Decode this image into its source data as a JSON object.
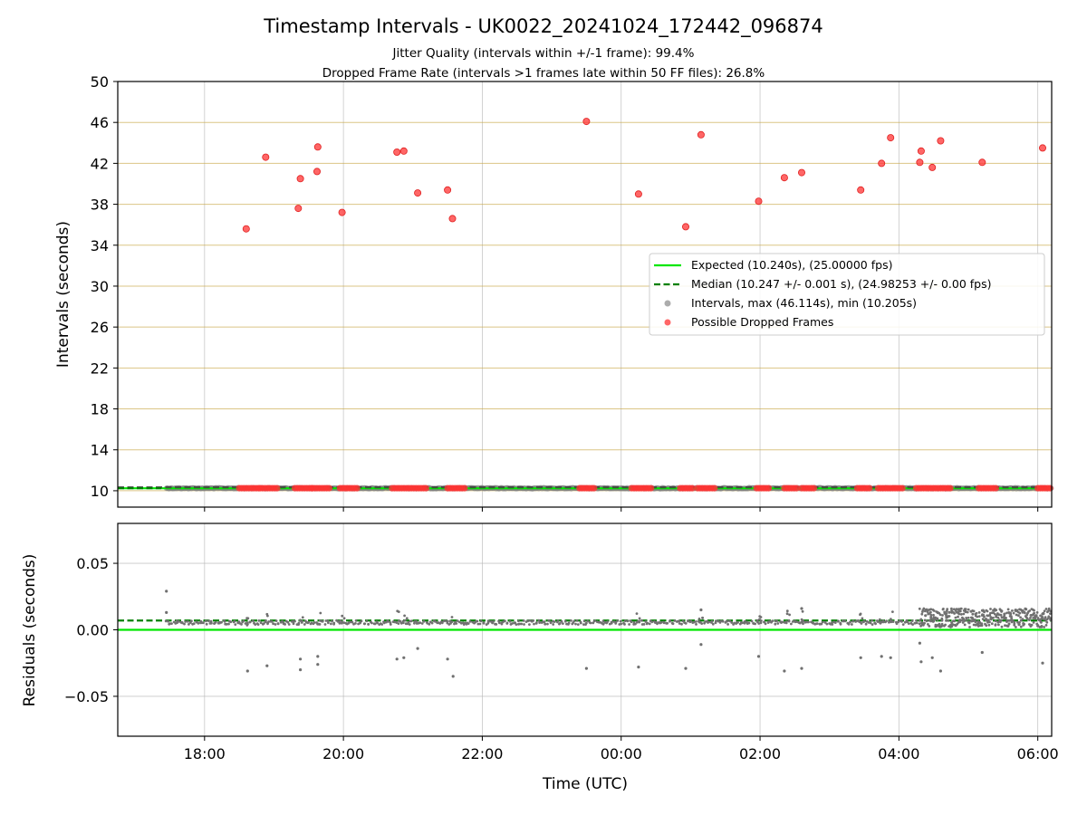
{
  "chart_data": [
    {
      "type": "scatter",
      "title": "Timestamp Intervals - UK0022_20241024_172442_096874",
      "subtitle_lines": [
        "Jitter Quality (intervals within +/-1 frame): 99.4%",
        "Dropped Frame Rate (intervals >1 frames late within 50 FF files): 26.8%"
      ],
      "ylabel": "Intervals (seconds)",
      "ylim": [
        8.4,
        50
      ],
      "yticks": [
        "10",
        "14",
        "18",
        "22",
        "26",
        "30",
        "34",
        "38",
        "42",
        "46",
        "50"
      ],
      "xlim_hours": [
        16.75,
        30.2
      ],
      "grid": true,
      "legend_position": "center-right",
      "series": [
        {
          "name": "Expected (10.240s), (25.00000 fps)",
          "kind": "hline",
          "y": 10.24,
          "color": "#00e600",
          "style": "solid"
        },
        {
          "name": "Median (10.247 +/- 0.001 s), (24.98253 +/- 0.00 fps)",
          "kind": "hline",
          "y": 10.247,
          "color": "#008000",
          "style": "dashed"
        },
        {
          "name": "Intervals, max (46.114s), min (10.205s)",
          "kind": "points",
          "color": "#808080",
          "x_range_hours": [
            17.45,
            30.2
          ],
          "y": 10.247
        },
        {
          "name": "Possible Dropped Frames",
          "kind": "points",
          "color": "#ff3333",
          "points": [
            [
              18.6,
              35.6
            ],
            [
              18.88,
              42.6
            ],
            [
              19.35,
              37.6
            ],
            [
              19.38,
              40.5
            ],
            [
              19.62,
              41.2
            ],
            [
              19.63,
              43.6
            ],
            [
              19.98,
              37.2
            ],
            [
              20.77,
              43.1
            ],
            [
              20.87,
              43.2
            ],
            [
              21.07,
              39.1
            ],
            [
              21.5,
              39.4
            ],
            [
              21.57,
              36.6
            ],
            [
              23.5,
              46.1
            ],
            [
              24.25,
              39.0
            ],
            [
              24.93,
              35.8
            ],
            [
              25.15,
              44.8
            ],
            [
              25.98,
              38.3
            ],
            [
              26.35,
              40.6
            ],
            [
              26.6,
              41.1
            ],
            [
              27.45,
              39.4
            ],
            [
              27.75,
              42.0
            ],
            [
              27.88,
              44.5
            ],
            [
              28.3,
              42.1
            ],
            [
              28.32,
              43.2
            ],
            [
              28.48,
              41.6
            ],
            [
              28.6,
              44.2
            ],
            [
              29.2,
              42.1
            ],
            [
              30.07,
              43.5
            ]
          ],
          "baseline_cluster_hours": [
            [
              18.5,
              18.8
            ],
            [
              18.8,
              19.05
            ],
            [
              19.3,
              19.55
            ],
            [
              19.55,
              19.8
            ],
            [
              19.95,
              20.2
            ],
            [
              20.7,
              21.2
            ],
            [
              21.5,
              21.75
            ],
            [
              23.4,
              23.62
            ],
            [
              24.15,
              24.45
            ],
            [
              24.85,
              25.05
            ],
            [
              25.1,
              25.35
            ],
            [
              25.95,
              26.15
            ],
            [
              26.35,
              26.55
            ],
            [
              26.6,
              26.8
            ],
            [
              27.4,
              27.6
            ],
            [
              27.7,
              28.05
            ],
            [
              28.25,
              28.75
            ],
            [
              29.15,
              29.4
            ],
            [
              30.0,
              30.2
            ]
          ]
        }
      ]
    },
    {
      "type": "scatter",
      "ylabel": "Residuals (seconds)",
      "xlabel": "Time (UTC)",
      "ylim": [
        -0.08,
        0.08
      ],
      "yticks": [
        "−0.05",
        "0.00",
        "0.05"
      ],
      "xticks": [
        "18:00",
        "20:00",
        "22:00",
        "00:00",
        "02:00",
        "04:00",
        "06:00"
      ],
      "xlim_hours": [
        16.75,
        30.2
      ],
      "grid": true,
      "series": [
        {
          "name": "expected",
          "kind": "hline",
          "y": 0.0,
          "color": "#00e600",
          "style": "solid"
        },
        {
          "name": "median",
          "kind": "hline",
          "y": 0.007,
          "color": "#008000",
          "style": "dashed"
        },
        {
          "name": "residuals",
          "kind": "points",
          "color": "#707070",
          "outliers": [
            [
              17.45,
              0.029
            ],
            [
              17.45,
              0.013
            ],
            [
              18.62,
              -0.031
            ],
            [
              18.9,
              -0.027
            ],
            [
              19.38,
              -0.022
            ],
            [
              19.38,
              -0.03
            ],
            [
              19.63,
              -0.02
            ],
            [
              19.63,
              -0.026
            ],
            [
              20.77,
              -0.022
            ],
            [
              20.87,
              -0.021
            ],
            [
              21.07,
              -0.014
            ],
            [
              21.5,
              -0.022
            ],
            [
              21.58,
              -0.035
            ],
            [
              23.5,
              -0.029
            ],
            [
              24.25,
              -0.028
            ],
            [
              24.93,
              -0.029
            ],
            [
              25.15,
              -0.011
            ],
            [
              25.15,
              0.015
            ],
            [
              25.98,
              -0.02
            ],
            [
              26.35,
              -0.031
            ],
            [
              26.6,
              -0.029
            ],
            [
              26.6,
              0.016
            ],
            [
              27.45,
              -0.021
            ],
            [
              27.75,
              -0.02
            ],
            [
              27.88,
              -0.021
            ],
            [
              28.3,
              -0.01
            ],
            [
              28.32,
              -0.024
            ],
            [
              28.48,
              -0.021
            ],
            [
              28.6,
              -0.031
            ],
            [
              29.2,
              -0.017
            ],
            [
              30.07,
              -0.025
            ]
          ]
        }
      ]
    }
  ]
}
